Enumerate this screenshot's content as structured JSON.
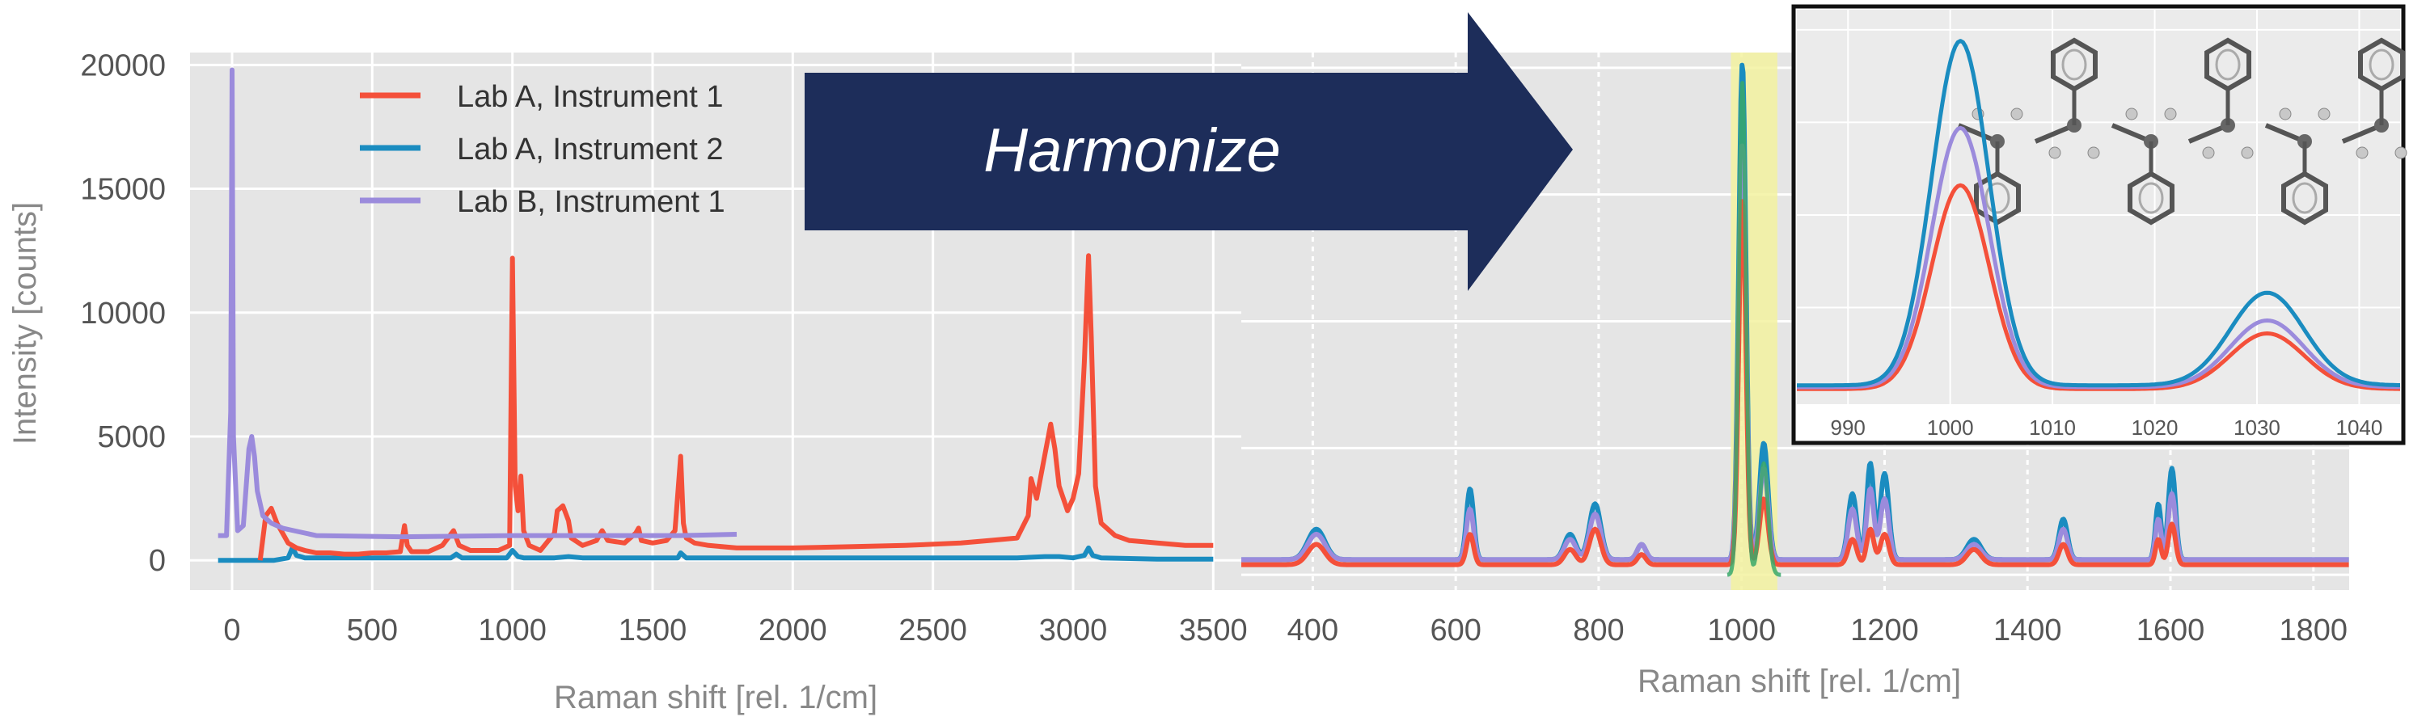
{
  "colors": {
    "lab_a_inst_1": "#f4503a",
    "lab_a_inst_2": "#1a8cc0",
    "lab_b_inst_1": "#9b8bdc",
    "overlap": "#39a86a",
    "plot_bg": "#e5e5e5",
    "highlight": "#f3f2a0",
    "arrow": "#1d2d5a"
  },
  "arrow": {
    "label": "Harmonize",
    "icon": "right-arrow-icon"
  },
  "legend": {
    "placement": "top-center"
  },
  "chart_data": [
    {
      "id": "raw",
      "type": "line",
      "xlabel": "Raman shift [rel. 1/cm]",
      "ylabel": "Intensity [counts]",
      "xlim": [
        -150,
        3600
      ],
      "ylim": [
        -1200,
        20500
      ],
      "xticks": [
        0,
        500,
        1000,
        1500,
        2000,
        2500,
        3000,
        3500
      ],
      "xtick_labels": [
        "0",
        "500",
        "1000",
        "1500",
        "2000",
        "2500",
        "3000",
        "3500"
      ],
      "yticks": [
        0,
        5000,
        10000,
        15000,
        20000
      ],
      "ytick_labels": [
        "0",
        "5000",
        "10000",
        "15000",
        "20000"
      ],
      "grid": true,
      "series": [
        {
          "name": "Lab A, Instrument 1",
          "color_key": "lab_a_inst_1",
          "x": [
            100,
            120,
            140,
            160,
            180,
            200,
            230,
            260,
            300,
            350,
            400,
            450,
            500,
            550,
            600,
            615,
            625,
            640,
            700,
            750,
            790,
            800,
            810,
            850,
            900,
            950,
            990,
            1000,
            1010,
            1020,
            1030,
            1040,
            1060,
            1100,
            1150,
            1160,
            1180,
            1200,
            1210,
            1250,
            1300,
            1320,
            1340,
            1400,
            1440,
            1450,
            1460,
            1500,
            1550,
            1580,
            1600,
            1610,
            1620,
            1650,
            1700,
            1800,
            2000,
            2200,
            2400,
            2600,
            2700,
            2800,
            2840,
            2850,
            2870,
            2900,
            2920,
            2935,
            2950,
            2980,
            3000,
            3020,
            3040,
            3055,
            3065,
            3080,
            3100,
            3150,
            3200,
            3300,
            3400,
            3500
          ],
          "y": [
            0,
            1800,
            2100,
            1500,
            1100,
            700,
            500,
            400,
            300,
            300,
            250,
            250,
            300,
            300,
            350,
            1400,
            600,
            350,
            350,
            600,
            1200,
            900,
            600,
            400,
            400,
            400,
            600,
            12200,
            3000,
            2000,
            3400,
            1200,
            600,
            400,
            1100,
            2000,
            2200,
            1600,
            900,
            600,
            800,
            1200,
            800,
            700,
            1100,
            1300,
            800,
            700,
            800,
            1200,
            4200,
            1500,
            900,
            700,
            600,
            500,
            500,
            550,
            600,
            700,
            800,
            900,
            1800,
            3300,
            2500,
            4300,
            5500,
            4500,
            3000,
            2000,
            2500,
            3500,
            8000,
            12300,
            9000,
            3000,
            1500,
            1000,
            800,
            700,
            600,
            600
          ]
        },
        {
          "name": "Lab A, Instrument 2",
          "color_key": "lab_a_inst_2",
          "x": [
            -50,
            150,
            200,
            215,
            230,
            260,
            300,
            500,
            600,
            780,
            800,
            820,
            980,
            1000,
            1020,
            1040,
            1150,
            1200,
            1250,
            1590,
            1600,
            1620,
            2800,
            2900,
            2950,
            3000,
            3040,
            3055,
            3070,
            3100,
            3300,
            3500
          ],
          "y": [
            0,
            0,
            100,
            500,
            200,
            100,
            100,
            100,
            100,
            100,
            250,
            100,
            100,
            400,
            150,
            100,
            100,
            150,
            100,
            100,
            300,
            100,
            100,
            150,
            150,
            100,
            200,
            500,
            200,
            100,
            50,
            50
          ],
          "note": "raw counts for instrument 2 sit near the baseline"
        },
        {
          "name": "Lab B, Instrument 1",
          "color_key": "lab_b_inst_1",
          "x": [
            -50,
            -20,
            -5,
            0,
            5,
            20,
            40,
            60,
            70,
            80,
            90,
            110,
            140,
            180,
            220,
            260,
            300,
            600,
            1000,
            1100,
            1500,
            1600,
            1800
          ],
          "y": [
            1000,
            1000,
            6000,
            19800,
            5000,
            1200,
            1400,
            4500,
            5000,
            4200,
            2800,
            1800,
            1500,
            1300,
            1200,
            1100,
            1000,
            950,
            1000,
            1000,
            1000,
            1000,
            1050
          ]
        }
      ]
    },
    {
      "id": "harmonized",
      "type": "line",
      "xlabel": "Raman shift [rel. 1/cm]",
      "ylabel": "",
      "xlim": [
        300,
        1850
      ],
      "ylim": [
        -0.03,
        1.03
      ],
      "xticks": [
        400,
        600,
        800,
        1000,
        1200,
        1400,
        1600,
        1800
      ],
      "xtick_labels": [
        "400",
        "600",
        "800",
        "1000",
        "1200",
        "1400",
        "1600",
        "1800"
      ],
      "grid": true,
      "highlight_range": [
        985,
        1050
      ],
      "peaks": {
        "x": [
          405,
          620,
          760,
          795,
          860,
          1001,
          1031,
          1155,
          1180,
          1200,
          1325,
          1450,
          1583,
          1602
        ],
        "width": [
          12,
          5,
          8,
          8,
          6,
          5,
          6,
          6,
          5,
          6,
          10,
          6,
          4,
          5
        ]
      },
      "series": [
        {
          "name": "Lab A, Instrument 1",
          "color_key": "lab_a_inst_1",
          "baseline": 0.02,
          "heights": [
            0.04,
            0.06,
            0.03,
            0.07,
            0.02,
            0.72,
            0.13,
            0.05,
            0.07,
            0.06,
            0.03,
            0.04,
            0.05,
            0.08
          ]
        },
        {
          "name": "Lab A, Instrument 2",
          "color_key": "lab_a_inst_2",
          "baseline": 0.03,
          "heights": [
            0.06,
            0.14,
            0.05,
            0.11,
            0.03,
            0.98,
            0.23,
            0.13,
            0.19,
            0.17,
            0.04,
            0.08,
            0.11,
            0.18
          ]
        },
        {
          "name": "Lab B, Instrument 1",
          "color_key": "lab_b_inst_1",
          "baseline": 0.03,
          "heights": [
            0.05,
            0.1,
            0.04,
            0.09,
            0.03,
            0.82,
            0.18,
            0.1,
            0.14,
            0.12,
            0.03,
            0.06,
            0.08,
            0.13
          ]
        },
        {
          "name": "",
          "color_key": "overlap",
          "baseline": 0.0,
          "heights": [
            0,
            0,
            0,
            0,
            0,
            0.97,
            0.22,
            0,
            0,
            0,
            0,
            0,
            0,
            0
          ],
          "range": [
            980,
            1055
          ]
        }
      ]
    },
    {
      "id": "inset",
      "type": "line",
      "xlabel": "",
      "ylabel": "",
      "xlim": [
        985,
        1044
      ],
      "ylim": [
        0,
        1.05
      ],
      "xticks": [
        990,
        1000,
        1010,
        1020,
        1030,
        1040
      ],
      "xtick_labels": [
        "990",
        "1000",
        "1010",
        "1020",
        "1030",
        "1040"
      ],
      "grid": true,
      "peaks": {
        "x": [
          1001,
          1031
        ],
        "width": [
          2.8,
          3.6
        ]
      },
      "series": [
        {
          "name": "Lab A, Instrument 1",
          "color_key": "lab_a_inst_1",
          "baseline": 0.03,
          "heights": [
            0.55,
            0.15
          ]
        },
        {
          "name": "Lab A, Instrument 2",
          "color_key": "lab_a_inst_2",
          "baseline": 0.04,
          "heights": [
            0.93,
            0.25
          ]
        },
        {
          "name": "Lab B, Instrument 1",
          "color_key": "lab_b_inst_1",
          "baseline": 0.035,
          "heights": [
            0.7,
            0.18
          ]
        }
      ],
      "illustration": "polystyrene-molecule-icon"
    }
  ]
}
